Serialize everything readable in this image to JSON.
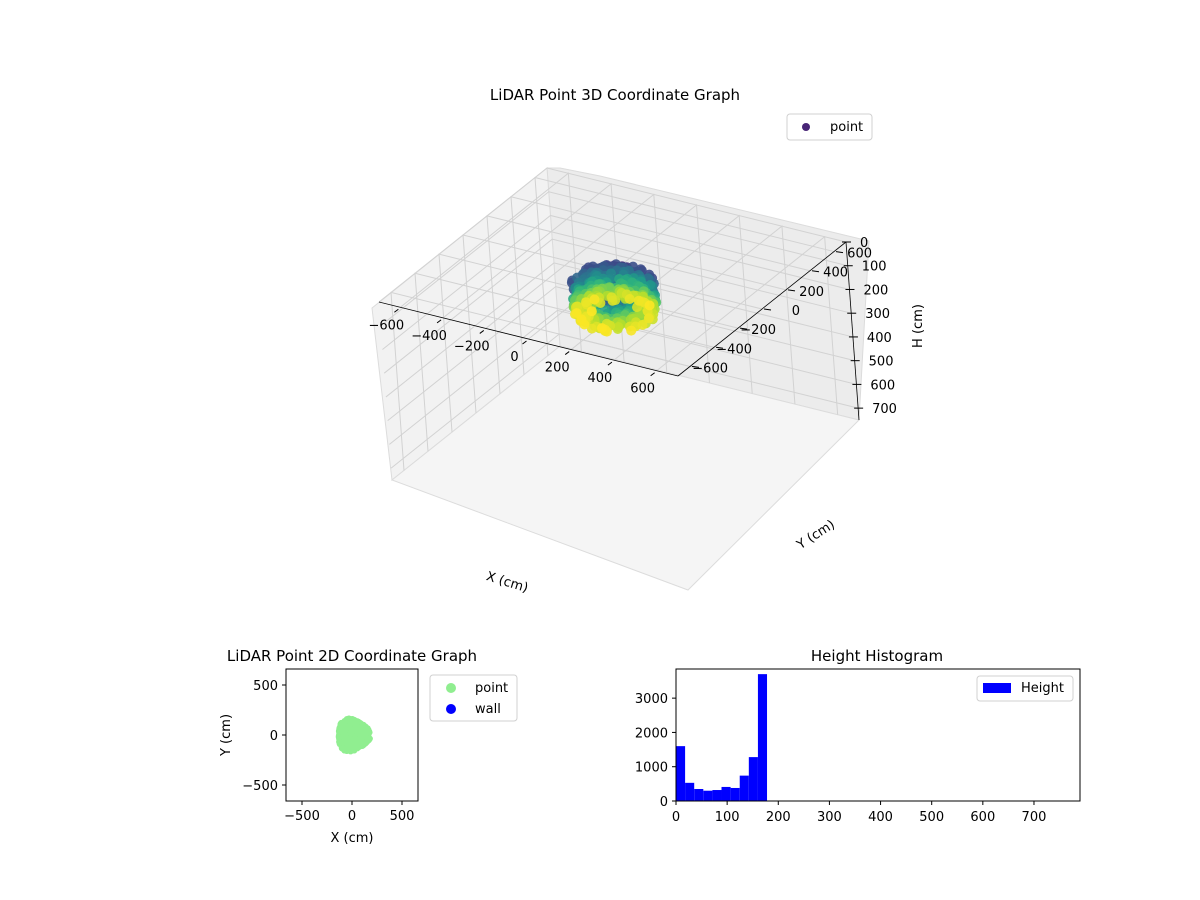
{
  "chart_data": [
    {
      "type": "scatter",
      "projection": "3d",
      "title": "LiDAR Point 3D Coordinate Graph",
      "xlabel": "X (cm)",
      "ylabel": "Y (cm)",
      "zlabel": "H (cm)",
      "xlim": [
        -700,
        700
      ],
      "ylim": [
        -700,
        700
      ],
      "zlim": [
        0,
        750
      ],
      "z_inverted": true,
      "x_ticks": [
        -600,
        -400,
        -200,
        0,
        200,
        400,
        600
      ],
      "y_ticks": [
        -600,
        -400,
        -200,
        0,
        200,
        400,
        600
      ],
      "z_ticks": [
        0,
        100,
        200,
        300,
        400,
        500,
        600,
        700
      ],
      "grid": true,
      "legend": {
        "placement": "upper-right",
        "entries": [
          {
            "label": "point",
            "color": "#482576"
          }
        ]
      },
      "colormap": "viridis",
      "point_cloud": {
        "center_x": 0,
        "center_y": 0,
        "radius": 170,
        "height_min": 0,
        "height_max": 180
      }
    },
    {
      "type": "scatter",
      "title": "LiDAR Point 2D Coordinate Graph",
      "xlabel": "X (cm)",
      "ylabel": "Y (cm)",
      "xlim": [
        -660,
        660
      ],
      "ylim": [
        -660,
        660
      ],
      "x_ticks": [
        -500,
        0,
        500
      ],
      "y_ticks": [
        -500,
        0,
        500
      ],
      "legend": {
        "placement": "outside-right",
        "entries": [
          {
            "label": "point",
            "color": "#90ee90"
          },
          {
            "label": "wall",
            "color": "#0000ff"
          }
        ]
      },
      "series": [
        {
          "name": "point",
          "color": "#90ee90",
          "center": [
            0,
            0
          ],
          "radius": 175
        },
        {
          "name": "wall",
          "color": "#0000ff",
          "values": []
        }
      ]
    },
    {
      "type": "bar",
      "title": "Height Histogram",
      "xlabel": "",
      "ylabel": "",
      "xlim": [
        0,
        790
      ],
      "ylim": [
        0,
        3850
      ],
      "x_ticks": [
        0,
        100,
        200,
        300,
        400,
        500,
        600,
        700
      ],
      "y_ticks": [
        0,
        1000,
        2000,
        3000
      ],
      "legend": {
        "placement": "upper-right",
        "entries": [
          {
            "label": "Height",
            "color": "#0000ff"
          }
        ]
      },
      "bin_width": 17.8,
      "bin_starts": [
        0,
        17.8,
        35.6,
        53.4,
        71.2,
        89.0,
        106.8,
        124.6,
        142.4,
        160.2
      ],
      "values": [
        1600,
        530,
        350,
        300,
        320,
        410,
        380,
        740,
        1280,
        3700
      ],
      "color": "#0000ff"
    }
  ]
}
